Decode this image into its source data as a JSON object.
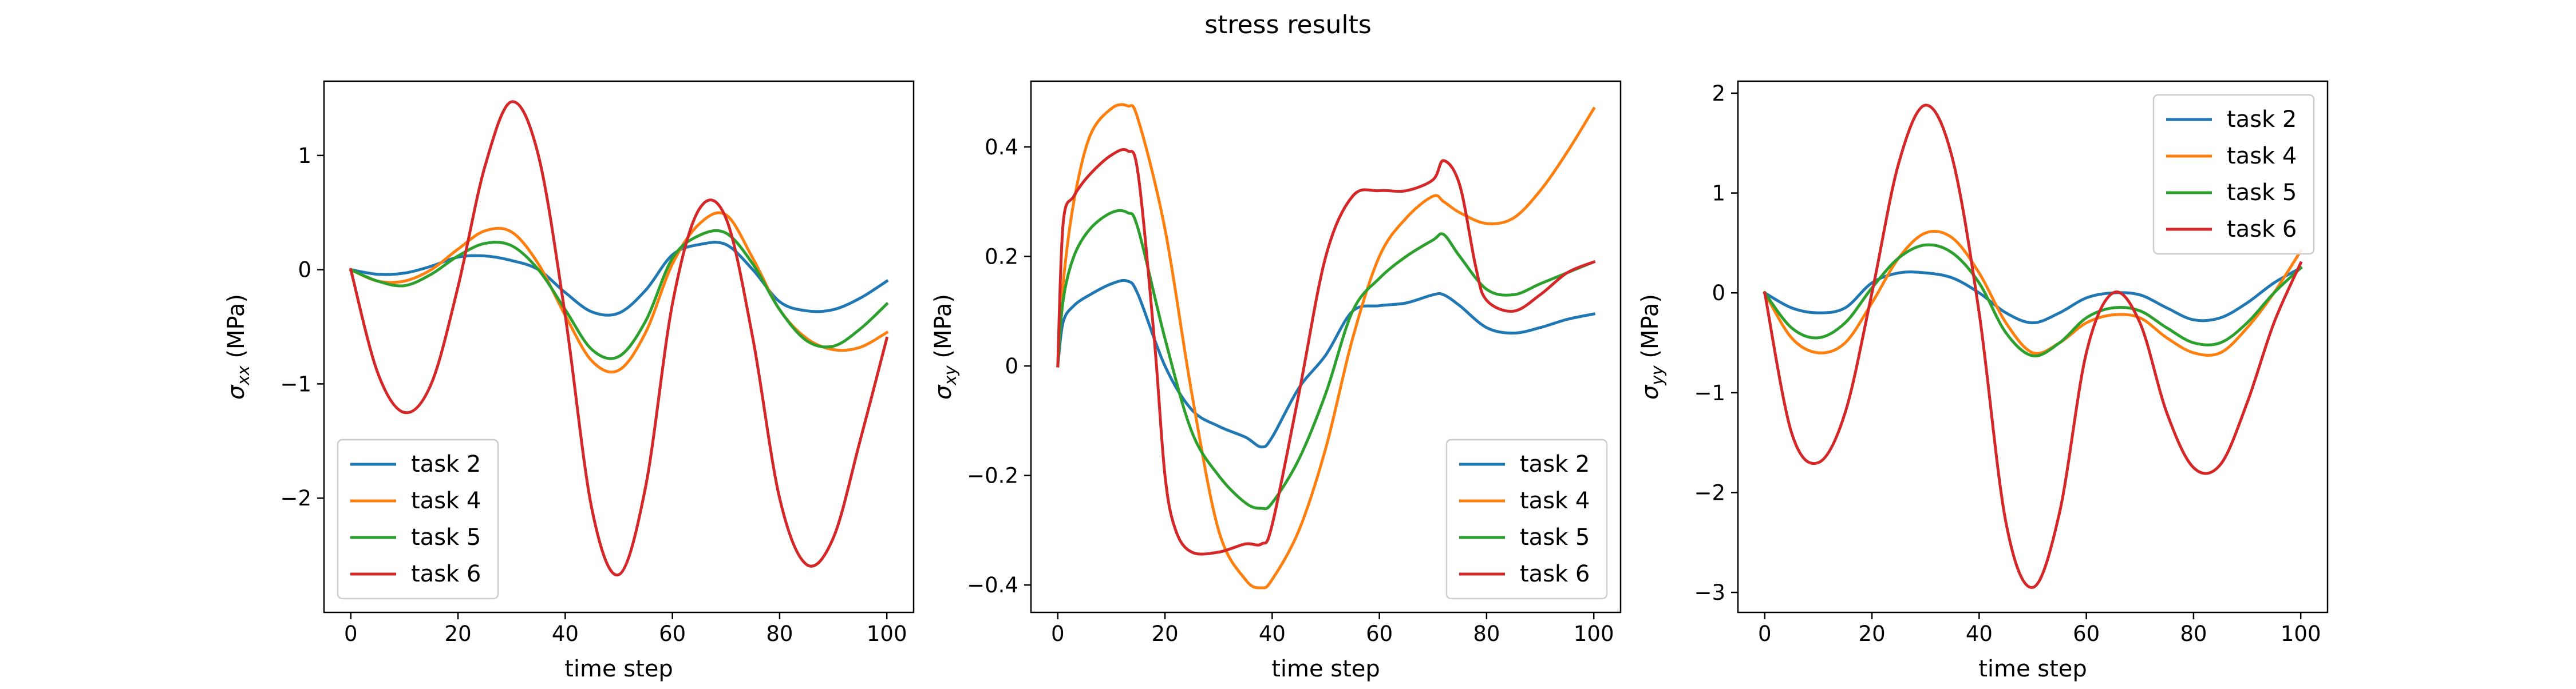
{
  "figure": {
    "title": "stress results"
  },
  "colors": {
    "task 2": "#1f77b4",
    "task 4": "#ff7f0e",
    "task 5": "#2ca02c",
    "task 6": "#d62728"
  },
  "chart_data": [
    {
      "type": "line",
      "xlabel": "time step",
      "ylabel": "σxx (MPa)",
      "ylabel_main": "σ",
      "ylabel_sub": "xx",
      "ylabel_unit": " (MPa)",
      "xlim": [
        -5,
        105
      ],
      "ylim": [
        -3.0,
        1.65
      ],
      "xticks": [
        0,
        20,
        40,
        60,
        80,
        100
      ],
      "yticks": [
        1,
        0,
        -1,
        -2
      ],
      "legend_position": "lower-left",
      "series": [
        {
          "name": "task 2",
          "x": [
            0,
            5,
            10,
            15,
            20,
            25,
            30,
            35,
            40,
            45,
            50,
            55,
            60,
            65,
            70,
            75,
            80,
            85,
            90,
            95,
            100
          ],
          "y": [
            0,
            -0.04,
            -0.03,
            0.03,
            0.11,
            0.12,
            0.08,
            0.0,
            -0.2,
            -0.37,
            -0.38,
            -0.18,
            0.13,
            0.22,
            0.22,
            0.0,
            -0.28,
            -0.36,
            -0.35,
            -0.25,
            -0.1
          ]
        },
        {
          "name": "task 4",
          "x": [
            0,
            5,
            10,
            15,
            20,
            25,
            30,
            35,
            40,
            45,
            50,
            55,
            60,
            65,
            70,
            75,
            80,
            85,
            90,
            95,
            100
          ],
          "y": [
            0,
            -0.1,
            -0.1,
            0.0,
            0.18,
            0.34,
            0.33,
            0.05,
            -0.4,
            -0.8,
            -0.88,
            -0.55,
            0.05,
            0.4,
            0.48,
            0.1,
            -0.35,
            -0.6,
            -0.7,
            -0.68,
            -0.55
          ]
        },
        {
          "name": "task 5",
          "x": [
            0,
            5,
            10,
            15,
            20,
            25,
            30,
            35,
            40,
            45,
            50,
            55,
            60,
            65,
            70,
            75,
            80,
            85,
            90,
            95,
            100
          ],
          "y": [
            0,
            -0.1,
            -0.14,
            -0.04,
            0.12,
            0.23,
            0.21,
            0.0,
            -0.35,
            -0.7,
            -0.76,
            -0.45,
            0.1,
            0.3,
            0.32,
            0.05,
            -0.35,
            -0.62,
            -0.67,
            -0.52,
            -0.3
          ]
        },
        {
          "name": "task 6",
          "x": [
            0,
            5,
            10,
            15,
            20,
            25,
            30,
            35,
            40,
            45,
            50,
            55,
            60,
            65,
            70,
            75,
            80,
            85,
            90,
            95,
            100
          ],
          "y": [
            0,
            -0.9,
            -1.25,
            -1.0,
            -0.15,
            0.9,
            1.47,
            1.0,
            -0.4,
            -2.1,
            -2.67,
            -1.9,
            -0.3,
            0.53,
            0.45,
            -0.6,
            -2.0,
            -2.58,
            -2.35,
            -1.5,
            -0.6
          ]
        }
      ]
    },
    {
      "type": "line",
      "xlabel": "time step",
      "ylabel": "σxy (MPa)",
      "ylabel_main": "σ",
      "ylabel_sub": "xy",
      "ylabel_unit": " (MPa)",
      "xlim": [
        -5,
        105
      ],
      "ylim": [
        -0.45,
        0.52
      ],
      "xticks": [
        0,
        20,
        40,
        60,
        80,
        100
      ],
      "yticks": [
        0.4,
        0.2,
        0.0,
        -0.2,
        -0.4
      ],
      "legend_position": "lower-right",
      "series": [
        {
          "name": "task 2",
          "x": [
            0,
            1,
            3,
            6,
            10,
            13,
            15,
            20,
            25,
            30,
            35,
            38,
            40,
            45,
            50,
            55,
            60,
            65,
            70,
            72,
            75,
            80,
            85,
            90,
            95,
            100
          ],
          "y": [
            0,
            0.08,
            0.11,
            0.13,
            0.15,
            0.155,
            0.13,
            0.0,
            -0.08,
            -0.11,
            -0.13,
            -0.148,
            -0.13,
            -0.04,
            0.02,
            0.1,
            0.11,
            0.115,
            0.13,
            0.13,
            0.11,
            0.07,
            0.06,
            0.07,
            0.085,
            0.095
          ]
        },
        {
          "name": "task 4",
          "x": [
            0,
            1,
            3,
            6,
            10,
            13,
            15,
            20,
            25,
            30,
            35,
            38,
            40,
            45,
            50,
            55,
            60,
            65,
            70,
            72,
            75,
            80,
            85,
            90,
            95,
            100
          ],
          "y": [
            0,
            0.15,
            0.3,
            0.42,
            0.47,
            0.475,
            0.45,
            0.25,
            -0.05,
            -0.3,
            -0.39,
            -0.405,
            -0.39,
            -0.3,
            -0.15,
            0.05,
            0.2,
            0.27,
            0.31,
            0.3,
            0.28,
            0.26,
            0.27,
            0.32,
            0.39,
            0.47
          ]
        },
        {
          "name": "task 5",
          "x": [
            0,
            1,
            3,
            6,
            10,
            13,
            15,
            20,
            25,
            30,
            35,
            38,
            40,
            45,
            50,
            55,
            60,
            65,
            70,
            72,
            75,
            80,
            85,
            90,
            95,
            100
          ],
          "y": [
            0,
            0.12,
            0.2,
            0.25,
            0.28,
            0.28,
            0.25,
            0.05,
            -0.12,
            -0.2,
            -0.25,
            -0.26,
            -0.25,
            -0.17,
            -0.05,
            0.1,
            0.16,
            0.2,
            0.23,
            0.24,
            0.2,
            0.14,
            0.13,
            0.15,
            0.17,
            0.19
          ]
        },
        {
          "name": "task 6",
          "x": [
            0,
            1,
            3,
            6,
            10,
            13,
            15,
            18,
            20,
            22,
            25,
            30,
            35,
            38,
            40,
            45,
            50,
            55,
            60,
            65,
            70,
            72,
            75,
            78,
            80,
            85,
            90,
            95,
            100
          ],
          "y": [
            0,
            0.26,
            0.31,
            0.35,
            0.385,
            0.393,
            0.35,
            0.05,
            -0.2,
            -0.3,
            -0.34,
            -0.34,
            -0.325,
            -0.325,
            -0.29,
            -0.05,
            0.2,
            0.31,
            0.32,
            0.32,
            0.34,
            0.375,
            0.33,
            0.18,
            0.12,
            0.1,
            0.13,
            0.17,
            0.19
          ]
        }
      ]
    },
    {
      "type": "line",
      "xlabel": "time step",
      "ylabel": "σyy (MPa)",
      "ylabel_main": "σ",
      "ylabel_sub": "yy",
      "ylabel_unit": " (MPa)",
      "xlim": [
        -5,
        105
      ],
      "ylim": [
        -3.2,
        2.12
      ],
      "xticks": [
        0,
        20,
        40,
        60,
        80,
        100
      ],
      "yticks": [
        2,
        1,
        0,
        -1,
        -2,
        -3
      ],
      "legend_position": "upper-right",
      "series": [
        {
          "name": "task 2",
          "x": [
            0,
            5,
            10,
            15,
            20,
            25,
            30,
            35,
            40,
            45,
            50,
            55,
            60,
            65,
            70,
            75,
            80,
            85,
            90,
            95,
            100
          ],
          "y": [
            0,
            -0.15,
            -0.2,
            -0.15,
            0.1,
            0.2,
            0.2,
            0.15,
            0.0,
            -0.2,
            -0.3,
            -0.2,
            -0.05,
            0.0,
            -0.02,
            -0.15,
            -0.27,
            -0.25,
            -0.1,
            0.1,
            0.25
          ]
        },
        {
          "name": "task 4",
          "x": [
            0,
            5,
            10,
            15,
            20,
            25,
            30,
            35,
            40,
            45,
            50,
            55,
            60,
            65,
            70,
            75,
            80,
            85,
            90,
            95,
            100
          ],
          "y": [
            0,
            -0.45,
            -0.6,
            -0.5,
            -0.1,
            0.35,
            0.6,
            0.55,
            0.2,
            -0.3,
            -0.6,
            -0.5,
            -0.3,
            -0.22,
            -0.25,
            -0.45,
            -0.6,
            -0.6,
            -0.35,
            0.0,
            0.42
          ]
        },
        {
          "name": "task 5",
          "x": [
            0,
            5,
            10,
            15,
            20,
            25,
            30,
            35,
            40,
            45,
            50,
            55,
            60,
            65,
            70,
            75,
            80,
            85,
            90,
            95,
            100
          ],
          "y": [
            0,
            -0.35,
            -0.45,
            -0.3,
            0.05,
            0.35,
            0.48,
            0.4,
            0.1,
            -0.4,
            -0.63,
            -0.5,
            -0.25,
            -0.15,
            -0.18,
            -0.35,
            -0.5,
            -0.5,
            -0.3,
            0.0,
            0.25
          ]
        },
        {
          "name": "task 6",
          "x": [
            0,
            5,
            10,
            15,
            20,
            25,
            30,
            35,
            40,
            45,
            50,
            55,
            60,
            65,
            70,
            75,
            80,
            85,
            90,
            95,
            100
          ],
          "y": [
            0,
            -1.4,
            -1.7,
            -1.2,
            0.0,
            1.3,
            1.88,
            1.35,
            -0.2,
            -2.3,
            -2.95,
            -2.2,
            -0.6,
            0.0,
            -0.3,
            -1.2,
            -1.75,
            -1.72,
            -1.1,
            -0.3,
            0.3
          ]
        }
      ]
    }
  ]
}
